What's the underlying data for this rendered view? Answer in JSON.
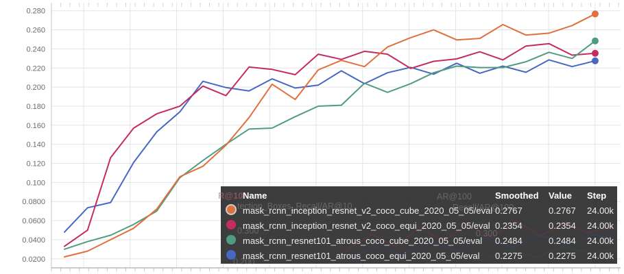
{
  "chart_data": {
    "type": "line",
    "x_axis": "training step (labels cropped out of view)",
    "steps_k": [
      1,
      2,
      3,
      4,
      5,
      6,
      7,
      8,
      9,
      10,
      11,
      12,
      13,
      14,
      15,
      16,
      17,
      18,
      19,
      20,
      21,
      22,
      23,
      24
    ],
    "final_step_label": "24.00k",
    "ylim": [
      0.0103,
      0.2913
    ],
    "grid": true,
    "yticks": [
      {
        "label": "0.280",
        "value": 0.28
      },
      {
        "label": "0.260",
        "value": 0.26
      },
      {
        "label": "0.240",
        "value": 0.24
      },
      {
        "label": "0.220",
        "value": 0.22
      },
      {
        "label": "0.200",
        "value": 0.2
      },
      {
        "label": "0.180",
        "value": 0.18
      },
      {
        "label": "0.160",
        "value": 0.16
      },
      {
        "label": "0.140",
        "value": 0.14
      },
      {
        "label": "0.120",
        "value": 0.12
      },
      {
        "label": "0.100",
        "value": 0.1
      },
      {
        "label": "0.0800",
        "value": 0.08
      },
      {
        "label": "0.0600",
        "value": 0.06
      },
      {
        "label": "0.0400",
        "value": 0.04
      },
      {
        "label": "0.0200",
        "value": 0.02
      }
    ],
    "series": [
      {
        "name": "mask_rcnn_inception_resnet_v2_coco_cube_2020_05_05/eval",
        "color": "#e0703d",
        "end_dot": true,
        "values": [
          0.022,
          0.028,
          0.04,
          0.052,
          0.072,
          0.106,
          0.117,
          0.139,
          0.168,
          0.203,
          0.187,
          0.218,
          0.228,
          0.2215,
          0.242,
          0.2517,
          0.26,
          0.2495,
          0.251,
          0.2655,
          0.2545,
          0.2565,
          0.2645,
          0.2767
        ]
      },
      {
        "name": "mask_rcnn_inception_resnet_v2_coco_equi_2020_05_05/eval",
        "color": "#c52b63",
        "end_dot": true,
        "values": [
          0.033,
          0.05,
          0.126,
          0.157,
          0.172,
          0.18,
          0.201,
          0.191,
          0.221,
          0.2185,
          0.213,
          0.2345,
          0.229,
          0.2375,
          0.2345,
          0.2195,
          0.227,
          0.2295,
          0.237,
          0.2285,
          0.243,
          0.2455,
          0.2335,
          0.2354
        ]
      },
      {
        "name": "mask_rcnn_resnet101_atrous_coco_cube_2020_05_05/eval",
        "color": "#4f9d80",
        "end_dot": true,
        "values": [
          0.03,
          0.038,
          0.0447,
          0.056,
          0.07,
          0.105,
          0.123,
          0.14,
          0.156,
          0.157,
          0.169,
          0.18,
          0.181,
          0.204,
          0.1945,
          0.2035,
          0.215,
          0.222,
          0.2205,
          0.2205,
          0.2265,
          0.2365,
          0.23,
          0.2484
        ]
      },
      {
        "name": "mask_rcnn_resnet101_atrous_coco_equi_2020_05_05/eval",
        "color": "#4668c2",
        "end_dot": true,
        "values": [
          0.048,
          0.0735,
          0.079,
          0.121,
          0.153,
          0.174,
          0.206,
          0.1995,
          0.196,
          0.2086,
          0.199,
          0.202,
          0.217,
          0.2036,
          0.215,
          0.2207,
          0.2135,
          0.225,
          0.2145,
          0.222,
          0.2155,
          0.2285,
          0.2215,
          0.2275
        ]
      }
    ]
  },
  "tooltip": {
    "headers": {
      "name": "Name",
      "smoothed": "Smoothed",
      "value": "Value",
      "step": "Step"
    },
    "rows": [
      {
        "name": "mask_rcnn_inception_resnet_v2_coco_cube_2020_05_05/eval",
        "smoothed": "0.2767",
        "value": "0.2767",
        "step": "24.00k",
        "color": "#e0703d",
        "highlighted": true
      },
      {
        "name": "mask_rcnn_inception_resnet_v2_coco_equi_2020_05_05/eval",
        "smoothed": "0.2354",
        "value": "0.2354",
        "step": "24.00k",
        "color": "#c52b63",
        "highlighted": false
      },
      {
        "name": "mask_rcnn_resnet101_atrous_coco_cube_2020_05_05/eval",
        "smoothed": "0.2484",
        "value": "0.2484",
        "step": "24.00k",
        "color": "#4f9d80",
        "highlighted": false
      },
      {
        "name": "mask_rcnn_resnet101_atrous_coco_equi_2020_05_05/eval",
        "smoothed": "0.2275",
        "value": "0.2275",
        "step": "24.00k",
        "color": "#4668c2",
        "highlighted": false
      }
    ]
  },
  "ghost_overlay": {
    "note": "content of the page bleeding through the translucent tooltip",
    "texts": [
      {
        "label": "R@10"
      },
      {
        "label": "AR@100"
      },
      {
        "label": "tection_Boxes_Recall/AR@10"
      },
      {
        "label": "Recall/AR@100"
      },
      {
        "label": "0.300"
      },
      {
        "label": "0.300"
      },
      {
        "label": "0.200"
      }
    ]
  },
  "colors": {
    "gridline": "#e4e4e4",
    "axis": "#9a9a9a",
    "tick_label": "#6b6b6b",
    "tooltip_bg": "rgba(40,40,40,0.90)"
  }
}
